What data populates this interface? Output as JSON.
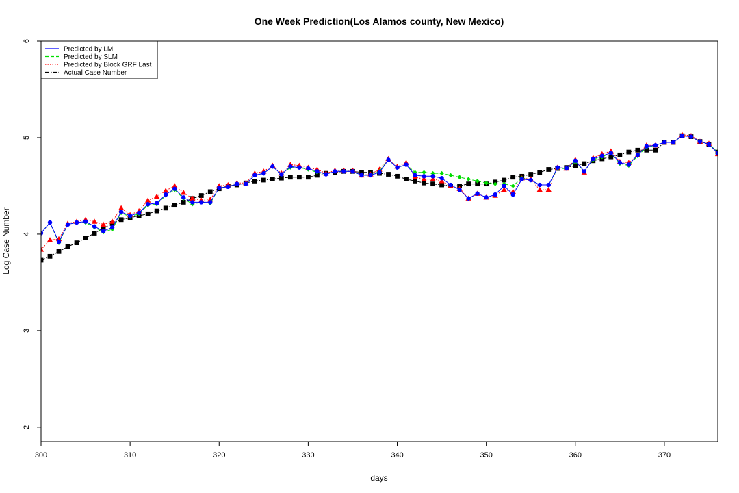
{
  "chart_data": {
    "type": "line",
    "title": "One Week Prediction(Los Alamos county, New Mexico)",
    "xlabel": "days",
    "ylabel": "Log Case Number",
    "xlim": [
      300,
      376
    ],
    "ylim": [
      1.85,
      6.0
    ],
    "xticks": [
      300,
      310,
      320,
      330,
      340,
      350,
      360,
      370
    ],
    "yticks": [
      2,
      3,
      4,
      5,
      6
    ],
    "legend_position": "top-left",
    "x": [
      300,
      301,
      302,
      303,
      304,
      305,
      306,
      307,
      308,
      309,
      310,
      311,
      312,
      313,
      314,
      315,
      316,
      317,
      318,
      319,
      320,
      321,
      322,
      323,
      324,
      325,
      326,
      327,
      328,
      329,
      330,
      331,
      332,
      333,
      334,
      335,
      336,
      337,
      338,
      339,
      340,
      341,
      342,
      343,
      344,
      345,
      346,
      347,
      348,
      349,
      350,
      351,
      352,
      353,
      354,
      355,
      356,
      357,
      358,
      359,
      360,
      361,
      362,
      363,
      364,
      365,
      366,
      367,
      368,
      369,
      370,
      371,
      372,
      373,
      374,
      375,
      376
    ],
    "series": [
      {
        "name": "Predicted by LM",
        "color": "#0000ff",
        "line_style": "solid",
        "marker": "circle",
        "values": [
          4.01,
          4.12,
          3.92,
          4.1,
          4.12,
          4.13,
          4.08,
          4.03,
          4.07,
          4.23,
          4.19,
          4.22,
          4.31,
          4.32,
          4.41,
          4.47,
          4.38,
          4.33,
          4.33,
          4.33,
          4.48,
          4.49,
          4.52,
          4.52,
          4.61,
          4.63,
          4.7,
          4.62,
          4.7,
          4.69,
          4.68,
          4.65,
          4.62,
          4.65,
          4.65,
          4.65,
          4.61,
          4.61,
          4.64,
          4.77,
          4.69,
          4.72,
          4.61,
          4.6,
          4.6,
          4.58,
          4.51,
          4.46,
          4.37,
          4.42,
          4.38,
          4.41,
          4.5,
          4.41,
          4.57,
          4.56,
          4.51,
          4.51,
          4.69,
          4.68,
          4.76,
          4.65,
          4.78,
          4.81,
          4.84,
          4.74,
          4.72,
          4.82,
          4.91,
          4.92,
          4.95,
          4.95,
          5.02,
          5.01,
          4.96,
          4.93,
          4.84
        ]
      },
      {
        "name": "Predicted by SLM",
        "color": "#00dd00",
        "line_style": "dashed",
        "marker": "diamond",
        "values": [
          4.01,
          4.12,
          3.91,
          4.1,
          4.12,
          4.12,
          4.07,
          4.02,
          4.05,
          4.22,
          4.18,
          4.21,
          4.3,
          4.31,
          4.4,
          4.46,
          4.37,
          4.31,
          4.33,
          4.32,
          4.48,
          4.49,
          4.52,
          4.52,
          4.61,
          4.63,
          4.7,
          4.62,
          4.69,
          4.69,
          4.67,
          4.64,
          4.62,
          4.65,
          4.65,
          4.65,
          4.61,
          4.61,
          4.65,
          4.77,
          4.69,
          4.72,
          4.64,
          4.64,
          4.63,
          4.63,
          4.61,
          4.59,
          4.57,
          4.55,
          4.53,
          4.52,
          4.52,
          4.5,
          4.58,
          4.56,
          4.51,
          4.51,
          4.68,
          4.68,
          4.75,
          4.65,
          4.77,
          4.8,
          4.84,
          4.73,
          4.71,
          4.81,
          4.9,
          4.92,
          4.95,
          4.95,
          5.02,
          5.01,
          4.96,
          4.93,
          4.85
        ]
      },
      {
        "name": "Predicted by Block GRF Last",
        "color": "#ff0000",
        "line_style": "dotted",
        "marker": "triangle",
        "values": [
          3.84,
          3.94,
          3.95,
          4.11,
          4.13,
          4.15,
          4.13,
          4.1,
          4.13,
          4.27,
          4.2,
          4.24,
          4.35,
          4.39,
          4.45,
          4.5,
          4.43,
          4.37,
          4.35,
          4.36,
          4.5,
          4.51,
          4.53,
          4.53,
          4.63,
          4.65,
          4.71,
          4.63,
          4.72,
          4.71,
          4.69,
          4.67,
          4.63,
          4.66,
          4.66,
          4.66,
          4.61,
          4.62,
          4.67,
          4.78,
          4.7,
          4.74,
          4.59,
          4.57,
          4.57,
          4.55,
          4.5,
          4.47,
          4.37,
          4.42,
          4.38,
          4.4,
          4.46,
          4.44,
          4.58,
          4.57,
          4.46,
          4.46,
          4.69,
          4.68,
          4.77,
          4.64,
          4.79,
          4.83,
          4.86,
          4.75,
          4.74,
          4.82,
          4.92,
          4.92,
          4.95,
          4.95,
          5.03,
          5.02,
          4.96,
          4.94,
          4.83
        ]
      },
      {
        "name": "Actual Case Number",
        "color": "#000000",
        "line_style": "dashdot",
        "marker": "square",
        "values": [
          3.73,
          3.77,
          3.82,
          3.87,
          3.91,
          3.96,
          4.01,
          4.06,
          4.11,
          4.15,
          4.17,
          4.19,
          4.21,
          4.24,
          4.27,
          4.3,
          4.33,
          4.37,
          4.4,
          4.44,
          4.47,
          4.5,
          4.51,
          4.53,
          4.55,
          4.56,
          4.57,
          4.58,
          4.59,
          4.59,
          4.59,
          4.61,
          4.63,
          4.64,
          4.65,
          4.65,
          4.64,
          4.64,
          4.63,
          4.62,
          4.6,
          4.57,
          4.55,
          4.53,
          4.52,
          4.51,
          4.5,
          4.5,
          4.52,
          4.52,
          4.52,
          4.54,
          4.56,
          4.59,
          4.6,
          4.62,
          4.64,
          4.67,
          4.68,
          4.69,
          4.71,
          4.73,
          4.76,
          4.78,
          4.8,
          4.82,
          4.85,
          4.87,
          4.87,
          4.87,
          4.95,
          4.95,
          5.02,
          5.01,
          4.96,
          4.93,
          4.85
        ]
      }
    ]
  }
}
